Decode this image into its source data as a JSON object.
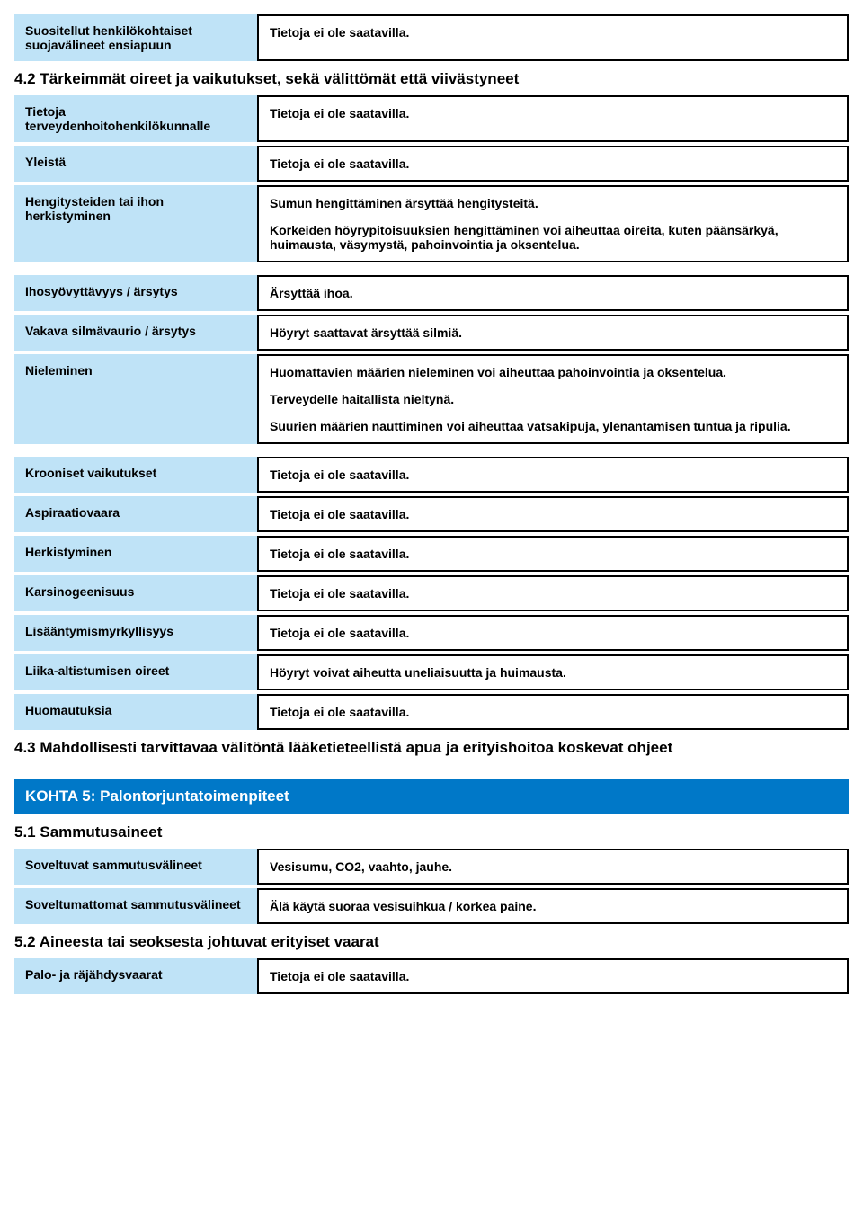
{
  "colors": {
    "label_bg": "#bfe3f7",
    "banner_bg": "#0078c8",
    "banner_text": "#ffffff",
    "border": "#000000",
    "page_bg": "#ffffff"
  },
  "rows": {
    "r1": {
      "label": "Suositellut henkilökohtaiset suojavälineet ensiapuun",
      "value": "Tietoja ei ole saatavilla."
    },
    "h42": "4.2 Tärkeimmät oireet ja vaikutukset, sekä välittömät että viivästyneet",
    "r2": {
      "label": "Tietoja terveydenhoitohenkilökunnalle",
      "value": "Tietoja ei ole saatavilla."
    },
    "r3": {
      "label": "Yleistä",
      "value": "Tietoja ei ole saatavilla."
    },
    "r4": {
      "label": "Hengitysteiden tai ihon herkistyminen",
      "p1": "Sumun hengittäminen ärsyttää hengitysteitä.",
      "p2": "Korkeiden höyrypitoisuuksien hengittäminen voi aiheuttaa oireita, kuten päänsärkyä, huimausta, väsymystä, pahoinvointia ja oksentelua."
    },
    "r5": {
      "label": "Ihosyövyttävyys / ärsytys",
      "value": "Ärsyttää ihoa."
    },
    "r6": {
      "label": "Vakava silmävaurio / ärsytys",
      "value": "Höyryt saattavat ärsyttää silmiä."
    },
    "r7": {
      "label": "Nieleminen",
      "p1": "Huomattavien määrien nieleminen voi aiheuttaa pahoinvointia ja oksentelua.",
      "p2": "Terveydelle haitallista nieltynä.",
      "p3": "Suurien määrien nauttiminen voi aiheuttaa vatsakipuja, ylenantamisen tuntua ja ripulia."
    },
    "r8": {
      "label": "Krooniset vaikutukset",
      "value": "Tietoja ei ole saatavilla."
    },
    "r9": {
      "label": "Aspiraatiovaara",
      "value": "Tietoja ei ole saatavilla."
    },
    "r10": {
      "label": "Herkistyminen",
      "value": "Tietoja ei ole saatavilla."
    },
    "r11": {
      "label": "Karsinogeenisuus",
      "value": "Tietoja ei ole saatavilla."
    },
    "r12": {
      "label": "Lisääntymismyrkyllisyys",
      "value": "Tietoja ei ole saatavilla."
    },
    "r13": {
      "label": "Liika-altistumisen oireet",
      "value": "Höyryt voivat aiheutta uneliaisuutta ja huimausta."
    },
    "r14": {
      "label": "Huomautuksia",
      "value": "Tietoja ei ole saatavilla."
    },
    "h43": "4.3 Mahdollisesti tarvittavaa välitöntä lääketieteellistä apua ja erityishoitoa koskevat ohjeet",
    "section5": "KOHTA 5: Palontorjuntatoimenpiteet",
    "h51": "5.1 Sammutusaineet",
    "r15": {
      "label": "Soveltuvat sammutusvälineet",
      "value": "Vesisumu, CO2, vaahto, jauhe."
    },
    "r16": {
      "label": "Soveltumattomat sammutusvälineet",
      "value": "Älä käytä suoraa vesisuihkua / korkea paine."
    },
    "h52": "5.2 Aineesta tai seoksesta johtuvat erityiset vaarat",
    "r17": {
      "label": "Palo- ja räjähdysvaarat",
      "value": "Tietoja ei ole saatavilla."
    }
  }
}
